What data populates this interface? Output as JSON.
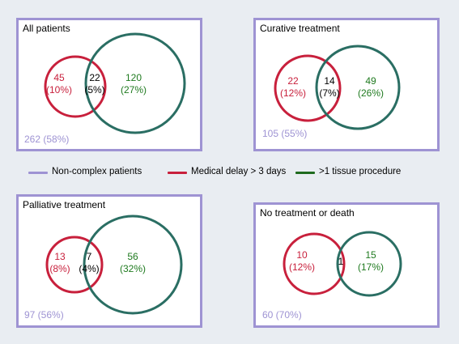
{
  "colors": {
    "frame": "#9e93d3",
    "medical_delay": "#c8203c",
    "tissue": "#2a6e63",
    "green_text": "#1f7a1f",
    "background": "#e9edf2"
  },
  "legend": {
    "non_complex": "Non-complex patients",
    "medical_delay": "Medical delay > 3 days",
    "tissue": ">1 tissue procedure"
  },
  "panels": [
    {
      "title": "All patients",
      "red_count": "45",
      "red_pct": "(10%)",
      "overlap_count": "22",
      "overlap_pct": "(5%)",
      "green_count": "120",
      "green_pct": "(27%)",
      "base_label": "262 (58%)"
    },
    {
      "title": "Curative treatment",
      "red_count": "22",
      "red_pct": "(12%)",
      "overlap_count": "14",
      "overlap_pct": "(7%)",
      "green_count": "49",
      "green_pct": "(26%)",
      "base_label": "105 (55%)"
    },
    {
      "title": "Palliative treatment",
      "red_count": "13",
      "red_pct": "(8%)",
      "overlap_count": "7",
      "overlap_pct": "(4%)",
      "green_count": "56",
      "green_pct": "(32%)",
      "base_label": "97 (56%)"
    },
    {
      "title": "No treatment or death",
      "red_count": "10",
      "red_pct": "(12%)",
      "overlap_count": "1",
      "overlap_pct": "",
      "green_count": "15",
      "green_pct": "(17%)",
      "base_label": "60 (70%)"
    }
  ]
}
